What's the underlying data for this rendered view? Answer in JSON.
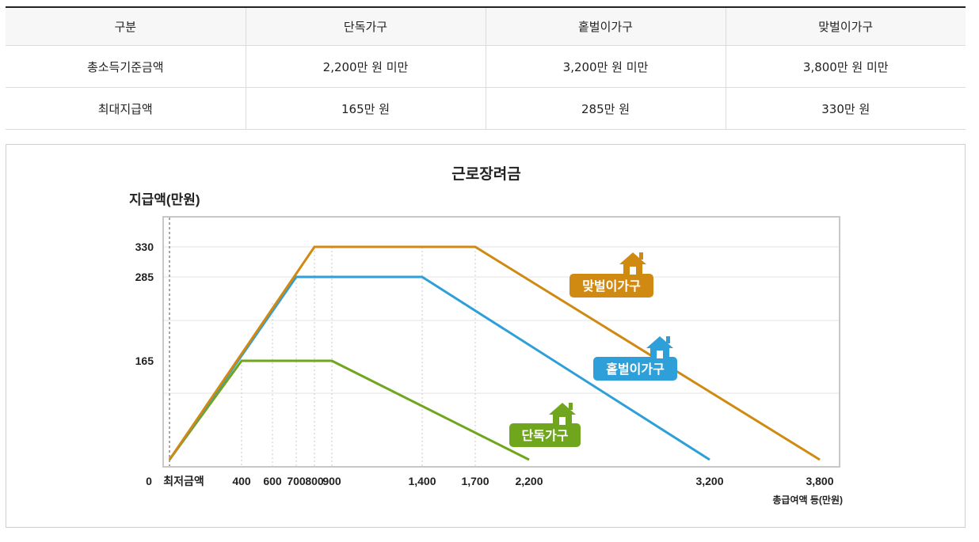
{
  "table": {
    "headers": [
      "구분",
      "단독가구",
      "홑벌이가구",
      "맞벌이가구"
    ],
    "rows": [
      [
        "총소득기준금액",
        "2,200만 원 미만",
        "3,200만 원 미만",
        "3,800만 원 미만"
      ],
      [
        "최대지급액",
        "165만 원",
        "285만 원",
        "330만 원"
      ]
    ]
  },
  "chart_data": {
    "type": "line",
    "title": "근로장려금",
    "ylabel": "지급액(만원)",
    "xlabel": "총급여액 등(만원)",
    "x_origin_labels": [
      "0",
      "최저금액"
    ],
    "x_ticks": [
      400,
      600,
      700,
      800,
      900,
      1400,
      1700,
      2200,
      3200,
      3800
    ],
    "x_tick_labels": [
      "400",
      "600",
      "700",
      "800",
      "900",
      "1,400",
      "1,700",
      "2,200",
      "3,200",
      "3,800"
    ],
    "y_ticks": [
      165,
      285,
      330
    ],
    "y_tick_labels": [
      "165",
      "285",
      "330"
    ],
    "xlim": [
      0,
      3800
    ],
    "ylim": [
      0,
      330
    ],
    "grid": true,
    "series": [
      {
        "name": "단독가구",
        "color": "#6fa61e",
        "x": [
          0,
          400,
          900,
          2200
        ],
        "y": [
          0,
          165,
          165,
          0
        ]
      },
      {
        "name": "홑벌이가구",
        "color": "#2e9fd8",
        "x": [
          0,
          700,
          1400,
          3200
        ],
        "y": [
          0,
          285,
          285,
          0
        ]
      },
      {
        "name": "맞벌이가구",
        "color": "#d08a12",
        "x": [
          0,
          800,
          1700,
          3800
        ],
        "y": [
          0,
          330,
          330,
          0
        ]
      }
    ],
    "annotations": [
      {
        "series": "맞벌이가구",
        "icon": "house-icon"
      },
      {
        "series": "홑벌이가구",
        "icon": "house-icon"
      },
      {
        "series": "단독가구",
        "icon": "house-icon"
      }
    ]
  }
}
